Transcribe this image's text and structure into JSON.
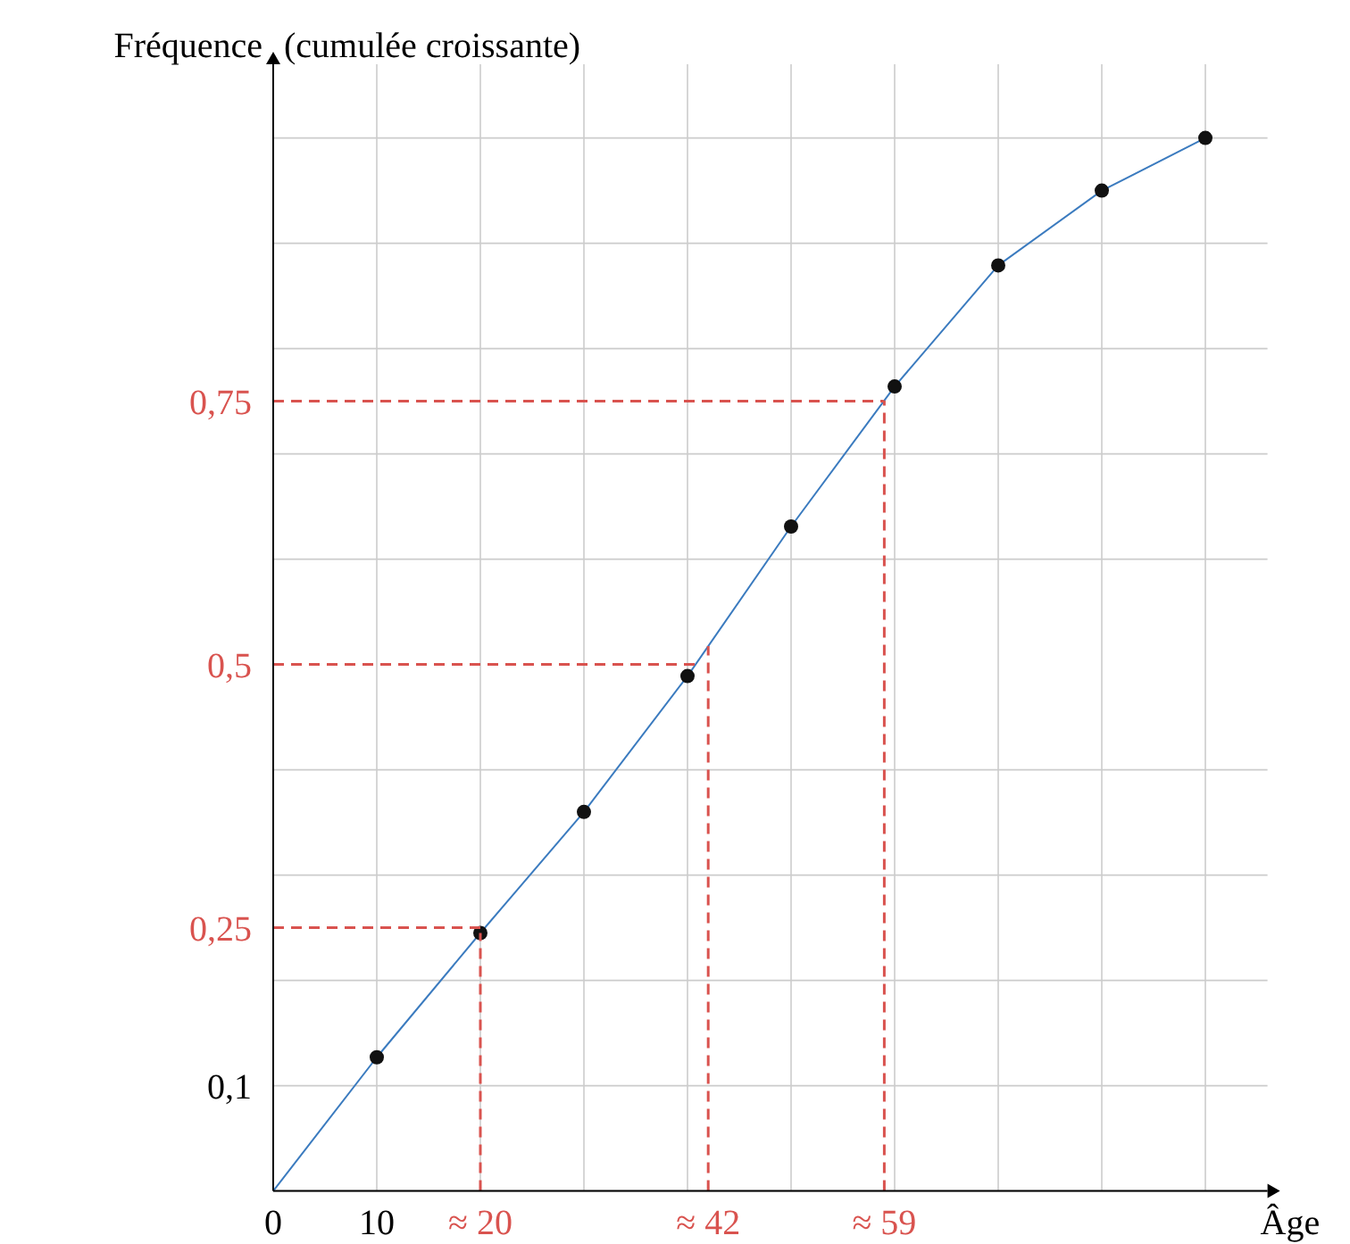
{
  "chart_data": {
    "type": "line",
    "xlabel": "Âge",
    "ylabel": "Fréquence (cumulée croissante)",
    "xlim": [
      0,
      96
    ],
    "ylim": [
      0,
      1.07
    ],
    "xticks": [
      {
        "value": 0,
        "label": "0"
      },
      {
        "value": 10,
        "label": "10"
      },
      {
        "value": 20,
        "label": null
      },
      {
        "value": 30,
        "label": null
      },
      {
        "value": 40,
        "label": null
      },
      {
        "value": 50,
        "label": null
      },
      {
        "value": 60,
        "label": null
      },
      {
        "value": 70,
        "label": null
      },
      {
        "value": 80,
        "label": null
      },
      {
        "value": 90,
        "label": null
      }
    ],
    "yticks": [
      {
        "value": 0,
        "label": null
      },
      {
        "value": 0.1,
        "label": "0,1"
      },
      {
        "value": 0.2,
        "label": null
      },
      {
        "value": 0.25,
        "label": "0,25"
      },
      {
        "value": 0.3,
        "label": null
      },
      {
        "value": 0.4,
        "label": null
      },
      {
        "value": 0.5,
        "label": "0,5"
      },
      {
        "value": 0.6,
        "label": null
      },
      {
        "value": 0.7,
        "label": null
      },
      {
        "value": 0.75,
        "label": "0,75"
      },
      {
        "value": 0.8,
        "label": null
      },
      {
        "value": 0.9,
        "label": null
      },
      {
        "value": 1,
        "label": null
      }
    ],
    "grid": true,
    "series": [
      {
        "type": "line",
        "marker": "none",
        "color": "#3b7bbf",
        "x": [
          0,
          10,
          20,
          30,
          40,
          50,
          60,
          70,
          80,
          90
        ],
        "values": [
          0,
          0.127,
          0.245,
          0.36,
          0.489,
          0.631,
          0.764,
          0.879,
          0.95,
          1.0
        ]
      },
      {
        "type": "scatter",
        "marker": "circle",
        "color": "#111111",
        "x": [
          10,
          20,
          30,
          40,
          50,
          60,
          70,
          80,
          90
        ],
        "values": [
          0.127,
          0.245,
          0.36,
          0.489,
          0.631,
          0.764,
          0.879,
          0.95,
          1.0
        ]
      }
    ],
    "ref_lines": [
      {
        "axis": "y",
        "value": 0.25,
        "color": "#d9534f",
        "line_style": "dashed"
      },
      {
        "axis": "y",
        "value": 0.5,
        "color": "#d9534f",
        "line_style": "dashed"
      },
      {
        "axis": "y",
        "value": 0.75,
        "color": "#d9534f",
        "line_style": "dashed"
      },
      {
        "axis": "x",
        "value": 20,
        "label": "≈ 20",
        "color": "#d9534f",
        "line_style": "dashed"
      },
      {
        "axis": "x",
        "value": 42,
        "label": "≈ 42",
        "color": "#d9534f",
        "line_style": "dashed"
      },
      {
        "axis": "x",
        "value": 59,
        "label": "≈ 59",
        "color": "#d9534f",
        "line_style": "dashed"
      }
    ]
  }
}
